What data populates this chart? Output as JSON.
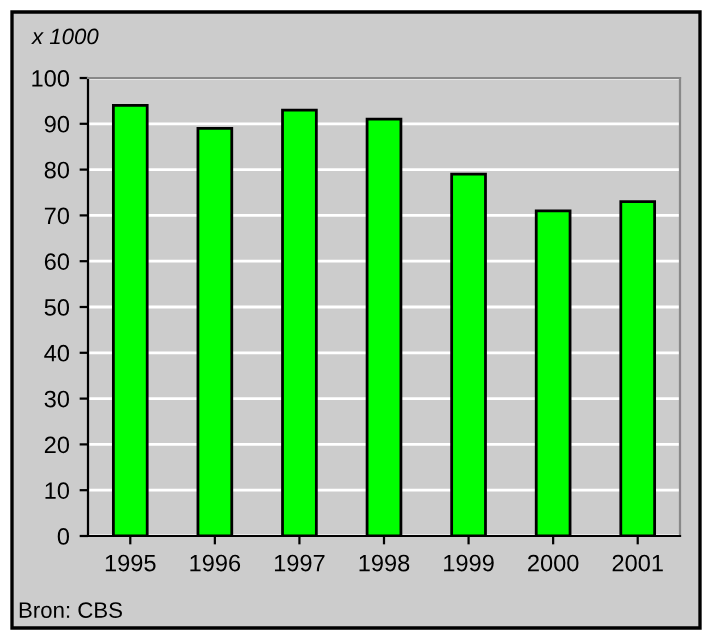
{
  "chart_data": {
    "type": "bar",
    "ylabel": "x 1000",
    "categories": [
      "1995",
      "1996",
      "1997",
      "1998",
      "1999",
      "2000",
      "2001"
    ],
    "values": [
      94,
      89,
      93,
      91,
      79,
      71,
      73
    ],
    "color": "#00ff00",
    "ylim": [
      0,
      100
    ],
    "yticks": [
      0,
      10,
      20,
      30,
      40,
      50,
      60,
      70,
      80,
      90,
      100
    ],
    "grid": "y",
    "legend": false,
    "annotations": [
      "Bron: CBS"
    ]
  }
}
